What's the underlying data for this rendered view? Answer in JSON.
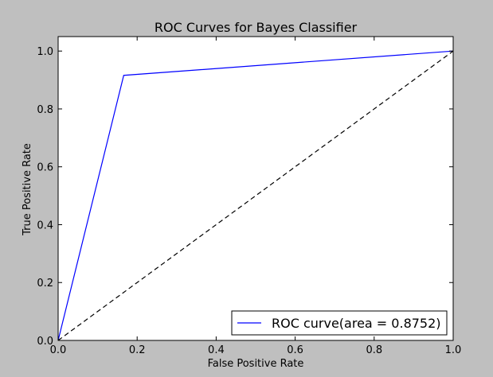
{
  "chart_data": {
    "type": "line",
    "title": "ROC Curves for Bayes Classifier",
    "xlabel": "False Positive Rate",
    "ylabel": "True Positive Rate",
    "xlim": [
      0,
      1
    ],
    "ylim": [
      0,
      1.05
    ],
    "xticks": [
      0.0,
      0.2,
      0.4,
      0.6,
      0.8,
      1.0
    ],
    "yticks": [
      0.0,
      0.2,
      0.4,
      0.6,
      0.8,
      1.0
    ],
    "xtick_labels": [
      "0.0",
      "0.2",
      "0.4",
      "0.6",
      "0.8",
      "1.0"
    ],
    "ytick_labels": [
      "0.0",
      "0.2",
      "0.4",
      "0.6",
      "0.8",
      "1.0"
    ],
    "grid": false,
    "legend_position": "lower-right",
    "series": [
      {
        "name": "ROC curve(area = 0.8752)",
        "style": "solid",
        "color": "#0000ff",
        "x": [
          0.0,
          0.166,
          1.0
        ],
        "y": [
          0.0,
          0.916,
          1.0
        ]
      },
      {
        "style": "dashed",
        "color": "#000000",
        "x": [
          0.0,
          1.0
        ],
        "y": [
          0.0,
          1.0
        ]
      }
    ]
  }
}
